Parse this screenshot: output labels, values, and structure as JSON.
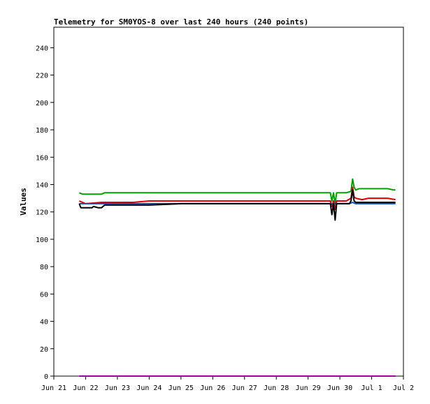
{
  "chart_data": {
    "type": "line",
    "title": "Telemetry for SM0YOS-8 over last 240 hours (240 points)",
    "xlabel": "",
    "ylabel": "Values",
    "ylim": [
      0,
      255
    ],
    "yticks": [
      0,
      20,
      40,
      60,
      80,
      100,
      120,
      140,
      160,
      180,
      200,
      220,
      240
    ],
    "xlim": [
      "Jun 21",
      "Jul 2"
    ],
    "xtick_labels": [
      "Jun 21",
      "Jun 22",
      "Jun 23",
      "Jun 24",
      "Jun 25",
      "Jun 26",
      "Jun 27",
      "Jun 28",
      "Jun 29",
      "Jun 30",
      "Jul 1",
      "Jul 2"
    ],
    "grid": false,
    "legend": "none",
    "series": [
      {
        "color": "#00a000",
        "x": [
          0.8,
          0.9,
          1.5,
          1.6,
          2.0,
          2.5,
          3.0,
          3.5,
          4.0,
          4.5,
          5.0,
          5.5,
          6.0,
          6.5,
          7.0,
          7.5,
          8.0,
          8.5,
          8.7,
          8.75,
          8.8,
          8.85,
          8.9,
          9.0,
          9.2,
          9.35,
          9.4,
          9.45,
          9.5,
          9.6,
          9.8,
          10.0,
          10.2,
          10.5,
          10.7,
          10.75
        ],
        "y": [
          134,
          133,
          133,
          134,
          134,
          134,
          134,
          134,
          134,
          134,
          134,
          134,
          134,
          134,
          134,
          134,
          134,
          134,
          134,
          128,
          134,
          126,
          134,
          134,
          134,
          135,
          144,
          138,
          136,
          137,
          137,
          137,
          137,
          137,
          136,
          136
        ]
      },
      {
        "color": "#e00000",
        "x": [
          0.8,
          1.0,
          1.5,
          2.0,
          2.5,
          3.0,
          3.5,
          4.0,
          4.5,
          5.0,
          5.5,
          6.0,
          6.5,
          7.0,
          7.5,
          8.0,
          8.5,
          8.7,
          8.75,
          8.8,
          8.85,
          8.9,
          9.0,
          9.2,
          9.35,
          9.4,
          9.45,
          9.5,
          9.7,
          9.9,
          10.0,
          10.2,
          10.5,
          10.75
        ],
        "y": [
          128,
          126,
          127,
          127,
          127,
          128,
          128,
          128,
          128,
          128,
          128,
          128,
          128,
          128,
          128,
          128,
          128,
          128,
          124,
          128,
          122,
          128,
          128,
          128,
          130,
          138,
          131,
          130,
          129,
          130,
          130,
          130,
          130,
          129
        ]
      },
      {
        "color": "#0050c0",
        "x": [
          0.8,
          1.0,
          1.5,
          2.0,
          3.0,
          4.0,
          5.0,
          6.0,
          7.0,
          8.0,
          8.7,
          9.0,
          9.3,
          9.4,
          9.5,
          10.0,
          10.5,
          10.75
        ],
        "y": [
          126,
          126,
          126,
          126,
          126,
          126,
          126,
          126,
          126,
          126,
          126,
          126,
          126,
          127,
          126,
          126,
          126,
          126
        ]
      },
      {
        "color": "#000000",
        "x": [
          0.8,
          0.85,
          0.9,
          1.2,
          1.25,
          1.4,
          1.5,
          1.6,
          2.0,
          2.5,
          3.0,
          4.0,
          5.0,
          6.0,
          7.0,
          8.0,
          8.7,
          8.75,
          8.8,
          8.85,
          8.9,
          9.0,
          9.3,
          9.35,
          9.4,
          9.45,
          9.5,
          10.0,
          10.5,
          10.75
        ],
        "y": [
          126,
          123,
          123,
          123,
          124,
          123,
          123,
          125,
          125,
          125,
          125,
          126,
          126,
          126,
          126,
          126,
          126,
          118,
          126,
          114,
          126,
          126,
          126,
          128,
          136,
          128,
          127,
          127,
          127,
          127
        ]
      },
      {
        "color": "#a000a0",
        "x": [
          0.8,
          10.75
        ],
        "y": [
          0,
          0
        ]
      }
    ]
  }
}
